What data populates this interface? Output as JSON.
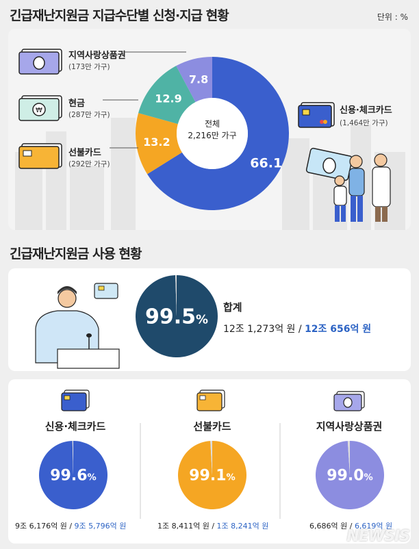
{
  "header": {
    "title": "긴급재난지원금 지급수단별 신청·지급 현황",
    "unit": "단위 : %"
  },
  "chart_data": [
    {
      "type": "pie",
      "title": "긴급재난지원금 지급수단별 신청·지급 현황",
      "center_label": "전체",
      "center_sub": "2,216만 가구",
      "slices": [
        {
          "name": "신용·체크카드",
          "sub": "(1,464만 가구)",
          "value": 66.1,
          "color": "#3a5fcd"
        },
        {
          "name": "선불카드",
          "sub": "(292만 가구)",
          "value": 13.2,
          "color": "#f5a623"
        },
        {
          "name": "현금",
          "sub": "(287만 가구)",
          "value": 12.9,
          "color": "#4fb3a5"
        },
        {
          "name": "지역사랑상품권",
          "sub": "(173만 가구)",
          "value": 7.8,
          "color": "#8c8de0"
        }
      ]
    },
    {
      "type": "pie",
      "title": "합계",
      "value": 99.5,
      "amount_total": "12조 1,273억 원",
      "amount_used": "12조 656억 원",
      "color": "#1f4a6b"
    },
    {
      "type": "pie",
      "title": "신용·체크카드",
      "value": 99.6,
      "amount_total": "9조 6,176억 원",
      "amount_used": "9조 5,796억 원",
      "color": "#3a5fcd"
    },
    {
      "type": "pie",
      "title": "선불카드",
      "value": 99.1,
      "amount_total": "1조 8,411억 원",
      "amount_used": "1조 8,241억 원",
      "color": "#f5a623"
    },
    {
      "type": "pie",
      "title": "지역사랑상품권",
      "value": 99.0,
      "amount_total": "6,686억 원",
      "amount_used": "6,619억 원",
      "color": "#8c8de0"
    }
  ],
  "section2": {
    "title": "긴급재난지원금 사용 현황"
  },
  "pct_sign": "%",
  "sep": " / ",
  "watermark": "NEWSIS",
  "icons": [
    "bill-icon",
    "cash-icon",
    "prepaid-card-icon",
    "credit-card-icon",
    "family-illustration-icon",
    "person-desk-illustration-icon"
  ]
}
